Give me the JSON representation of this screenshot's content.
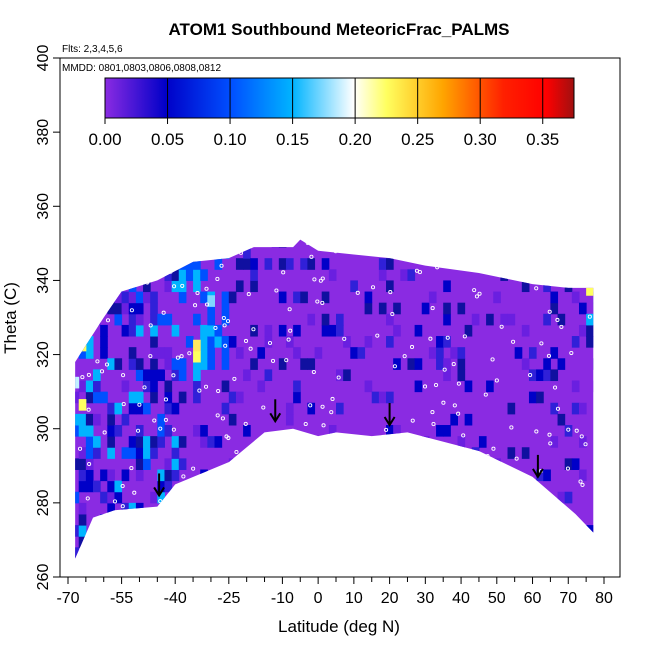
{
  "chart_data": {
    "type": "heatmap",
    "title": "ATOM1 Southbound MeteoricFrac_PALMS",
    "annotations": {
      "flights": "Flts: 2,3,4,5,6",
      "dates": "MMDD: 0801,0803,0806,0808,0812"
    },
    "xlabel": "Latitude (deg N)",
    "ylabel": "Theta (C)",
    "xlim": [
      -70,
      80
    ],
    "ylim": [
      260,
      400
    ],
    "x_major_ticks": [
      -70,
      -55,
      -40,
      -25,
      -10,
      0,
      10,
      20,
      30,
      40,
      50,
      60,
      70,
      80
    ],
    "x_minor_ticks": [
      -65,
      -60,
      -50,
      -45,
      -35,
      -30,
      -20,
      -15,
      -5,
      5,
      15,
      25,
      35,
      45,
      55,
      65,
      75
    ],
    "y_ticks": [
      260,
      280,
      300,
      320,
      340,
      360,
      380,
      400
    ],
    "colorbar": {
      "range": [
        0,
        0.375
      ],
      "ticks": [
        0.0,
        0.05,
        0.1,
        0.15,
        0.2,
        0.25,
        0.3,
        0.35
      ],
      "tick_labels": [
        "0.00",
        "0.05",
        "0.10",
        "0.15",
        "0.20",
        "0.25",
        "0.30",
        "0.35"
      ],
      "colors": [
        "#8a2be2",
        "#0000c8",
        "#0050ff",
        "#00b4ff",
        "#ffffff",
        "#ffff60",
        "#ffa500",
        "#ff2000",
        "#ff0000",
        "#a01010"
      ]
    },
    "data_envelope_bottom": [
      [
        -68,
        265
      ],
      [
        -63,
        276
      ],
      [
        -57,
        278
      ],
      [
        -45,
        279
      ],
      [
        -40,
        285
      ],
      [
        -25,
        291
      ],
      [
        -15,
        299
      ],
      [
        -7,
        300
      ],
      [
        0,
        298
      ],
      [
        5,
        299
      ],
      [
        15,
        298
      ],
      [
        25,
        299
      ],
      [
        45,
        294
      ],
      [
        60,
        287
      ],
      [
        72,
        277
      ],
      [
        77,
        272
      ]
    ],
    "data_envelope_top": [
      [
        -68,
        318
      ],
      [
        -60,
        330
      ],
      [
        -55,
        337
      ],
      [
        -45,
        340
      ],
      [
        -35,
        345
      ],
      [
        -25,
        346
      ],
      [
        -18,
        349
      ],
      [
        -7,
        349
      ],
      [
        -5,
        351
      ],
      [
        0,
        348
      ],
      [
        10,
        347
      ],
      [
        20,
        346
      ],
      [
        30,
        344
      ],
      [
        45,
        342
      ],
      [
        60,
        339
      ],
      [
        70,
        338
      ],
      [
        77,
        338
      ]
    ],
    "arrows": [
      [
        -44.5,
        282
      ],
      [
        -12,
        302
      ],
      [
        20,
        301
      ],
      [
        61.5,
        287
      ]
    ]
  }
}
